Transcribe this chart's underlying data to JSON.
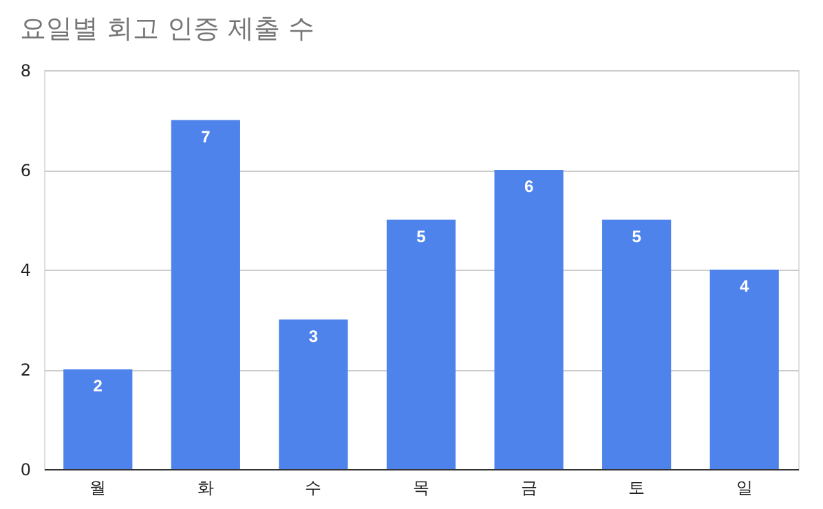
{
  "chart_data": {
    "type": "bar",
    "title": "요일별 회고 인증 제출 수",
    "categories": [
      "월",
      "화",
      "수",
      "목",
      "금",
      "토",
      "일"
    ],
    "values": [
      2,
      7,
      3,
      5,
      6,
      5,
      4
    ],
    "color": "#4f83ec",
    "ylim": [
      0,
      8
    ],
    "yticks": [
      0,
      2,
      4,
      6,
      8
    ],
    "grid": "y",
    "data_labels": true
  }
}
